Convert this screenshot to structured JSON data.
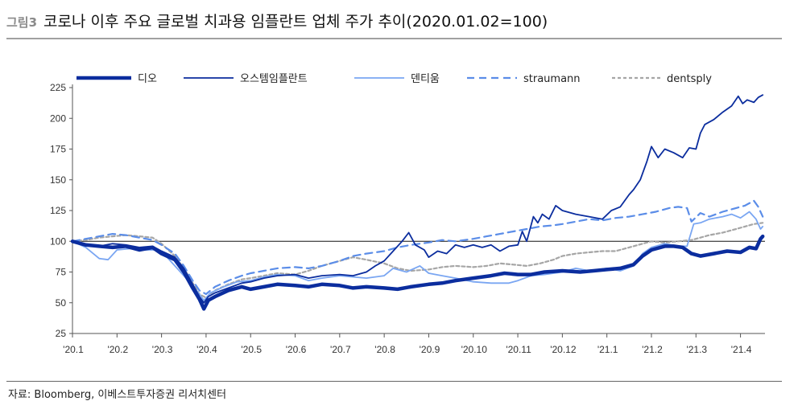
{
  "header": {
    "figure_label": "그림3",
    "title": "코로나 이후 주요 글로벌 치과용 임플란트 업체 주가 추이(2020.01.02=100)"
  },
  "footer": {
    "source": "자료: Bloomberg, 이베스트투자증권 리서치센터"
  },
  "chart_data": {
    "type": "line",
    "ylim": [
      25,
      225
    ],
    "yticks": [
      25,
      50,
      75,
      100,
      125,
      150,
      175,
      200,
      225
    ],
    "xlim": [
      0,
      15.55
    ],
    "xtick_labels": [
      "'20.1",
      "'20.2",
      "'20.3",
      "'20.4",
      "'20.5",
      "'20.6",
      "'20.7",
      "'20.8",
      "'20.9",
      "'20.10",
      "'20.11",
      "'20.12",
      "'21.1",
      "'21.2",
      "'21.3",
      "'21.4"
    ],
    "reference_line": 100,
    "legend_position": "top",
    "series": [
      {
        "name": "디오",
        "color": "#0b2d9e",
        "style": "solid-thick",
        "points": [
          [
            0,
            100
          ],
          [
            0.3,
            97
          ],
          [
            0.6,
            96
          ],
          [
            0.9,
            95
          ],
          [
            1.2,
            96
          ],
          [
            1.5,
            93
          ],
          [
            1.8,
            95
          ],
          [
            2.0,
            90
          ],
          [
            2.3,
            85
          ],
          [
            2.5,
            75
          ],
          [
            2.7,
            62
          ],
          [
            2.85,
            53
          ],
          [
            2.95,
            45
          ],
          [
            3.05,
            52
          ],
          [
            3.2,
            55
          ],
          [
            3.5,
            60
          ],
          [
            3.8,
            63
          ],
          [
            4.0,
            61
          ],
          [
            4.3,
            63
          ],
          [
            4.6,
            65
          ],
          [
            5.0,
            64
          ],
          [
            5.3,
            63
          ],
          [
            5.6,
            65
          ],
          [
            6.0,
            64
          ],
          [
            6.3,
            62
          ],
          [
            6.6,
            63
          ],
          [
            7.0,
            62
          ],
          [
            7.3,
            61
          ],
          [
            7.6,
            63
          ],
          [
            8.0,
            65
          ],
          [
            8.3,
            66
          ],
          [
            8.6,
            68
          ],
          [
            9.0,
            70
          ],
          [
            9.4,
            72
          ],
          [
            9.7,
            74
          ],
          [
            10.0,
            73
          ],
          [
            10.3,
            73
          ],
          [
            10.6,
            75
          ],
          [
            11.0,
            76
          ],
          [
            11.4,
            75
          ],
          [
            11.7,
            76
          ],
          [
            12.0,
            77
          ],
          [
            12.3,
            78
          ],
          [
            12.6,
            81
          ],
          [
            12.8,
            88
          ],
          [
            13.0,
            93
          ],
          [
            13.3,
            96
          ],
          [
            13.5,
            96
          ],
          [
            13.7,
            95
          ],
          [
            13.9,
            90
          ],
          [
            14.1,
            88
          ],
          [
            14.4,
            90
          ],
          [
            14.7,
            92
          ],
          [
            15.0,
            91
          ],
          [
            15.2,
            95
          ],
          [
            15.35,
            94
          ],
          [
            15.45,
            102
          ],
          [
            15.5,
            104
          ]
        ]
      },
      {
        "name": "오스템임플란트",
        "color": "#0b2d9e",
        "style": "solid",
        "points": [
          [
            0,
            100
          ],
          [
            0.3,
            97
          ],
          [
            0.6,
            96
          ],
          [
            0.9,
            98
          ],
          [
            1.2,
            97
          ],
          [
            1.5,
            95
          ],
          [
            1.8,
            96
          ],
          [
            2.0,
            92
          ],
          [
            2.3,
            87
          ],
          [
            2.5,
            78
          ],
          [
            2.7,
            65
          ],
          [
            2.85,
            55
          ],
          [
            2.95,
            50
          ],
          [
            3.05,
            55
          ],
          [
            3.2,
            58
          ],
          [
            3.5,
            62
          ],
          [
            3.8,
            66
          ],
          [
            4.0,
            67
          ],
          [
            4.3,
            70
          ],
          [
            4.6,
            72
          ],
          [
            5.0,
            73
          ],
          [
            5.3,
            70
          ],
          [
            5.6,
            72
          ],
          [
            6.0,
            73
          ],
          [
            6.3,
            72
          ],
          [
            6.6,
            75
          ],
          [
            6.8,
            80
          ],
          [
            7.0,
            84
          ],
          [
            7.2,
            92
          ],
          [
            7.4,
            100
          ],
          [
            7.55,
            107
          ],
          [
            7.7,
            97
          ],
          [
            7.9,
            93
          ],
          [
            8.0,
            87
          ],
          [
            8.2,
            92
          ],
          [
            8.4,
            90
          ],
          [
            8.6,
            97
          ],
          [
            8.8,
            95
          ],
          [
            9.0,
            97
          ],
          [
            9.2,
            95
          ],
          [
            9.4,
            97
          ],
          [
            9.6,
            92
          ],
          [
            9.8,
            96
          ],
          [
            10.0,
            97
          ],
          [
            10.1,
            108
          ],
          [
            10.2,
            100
          ],
          [
            10.35,
            120
          ],
          [
            10.45,
            115
          ],
          [
            10.55,
            122
          ],
          [
            10.7,
            118
          ],
          [
            10.85,
            129
          ],
          [
            11.0,
            125
          ],
          [
            11.3,
            122
          ],
          [
            11.6,
            120
          ],
          [
            11.9,
            118
          ],
          [
            12.1,
            125
          ],
          [
            12.3,
            128
          ],
          [
            12.5,
            138
          ],
          [
            12.6,
            142
          ],
          [
            12.75,
            150
          ],
          [
            12.9,
            165
          ],
          [
            13.0,
            177
          ],
          [
            13.15,
            168
          ],
          [
            13.3,
            175
          ],
          [
            13.5,
            172
          ],
          [
            13.7,
            168
          ],
          [
            13.85,
            176
          ],
          [
            14.0,
            175
          ],
          [
            14.1,
            188
          ],
          [
            14.2,
            195
          ],
          [
            14.4,
            199
          ],
          [
            14.6,
            205
          ],
          [
            14.8,
            210
          ],
          [
            14.95,
            218
          ],
          [
            15.05,
            212
          ],
          [
            15.15,
            215
          ],
          [
            15.3,
            213
          ],
          [
            15.4,
            217
          ],
          [
            15.5,
            219
          ]
        ]
      },
      {
        "name": "덴티움",
        "color": "#7aa6f2",
        "style": "solid",
        "points": [
          [
            0,
            100
          ],
          [
            0.3,
            95
          ],
          [
            0.6,
            86
          ],
          [
            0.8,
            85
          ],
          [
            1.0,
            93
          ],
          [
            1.3,
            94
          ],
          [
            1.6,
            93
          ],
          [
            1.9,
            93
          ],
          [
            2.1,
            88
          ],
          [
            2.3,
            80
          ],
          [
            2.5,
            72
          ],
          [
            2.7,
            64
          ],
          [
            2.85,
            57
          ],
          [
            2.95,
            52
          ],
          [
            3.1,
            58
          ],
          [
            3.4,
            63
          ],
          [
            3.7,
            67
          ],
          [
            4.0,
            68
          ],
          [
            4.3,
            71
          ],
          [
            4.6,
            73
          ],
          [
            5.0,
            72
          ],
          [
            5.3,
            68
          ],
          [
            5.6,
            70
          ],
          [
            6.0,
            72
          ],
          [
            6.3,
            71
          ],
          [
            6.6,
            70
          ],
          [
            7.0,
            72
          ],
          [
            7.2,
            78
          ],
          [
            7.5,
            75
          ],
          [
            7.8,
            80
          ],
          [
            8.0,
            74
          ],
          [
            8.3,
            72
          ],
          [
            8.6,
            70
          ],
          [
            9.0,
            67
          ],
          [
            9.4,
            66
          ],
          [
            9.8,
            66
          ],
          [
            10.0,
            68
          ],
          [
            10.3,
            72
          ],
          [
            10.6,
            73
          ],
          [
            11.0,
            75
          ],
          [
            11.3,
            78
          ],
          [
            11.6,
            76
          ],
          [
            12.0,
            78
          ],
          [
            12.3,
            76
          ],
          [
            12.6,
            80
          ],
          [
            12.8,
            90
          ],
          [
            13.0,
            95
          ],
          [
            13.3,
            98
          ],
          [
            13.6,
            96
          ],
          [
            13.8,
            96
          ],
          [
            13.95,
            114
          ],
          [
            14.1,
            115
          ],
          [
            14.3,
            118
          ],
          [
            14.6,
            120
          ],
          [
            14.8,
            122
          ],
          [
            15.0,
            119
          ],
          [
            15.2,
            124
          ],
          [
            15.35,
            118
          ],
          [
            15.45,
            110
          ],
          [
            15.5,
            112
          ]
        ]
      },
      {
        "name": "straumann",
        "color": "#5b8de8",
        "style": "dashed",
        "points": [
          [
            0,
            100
          ],
          [
            0.3,
            102
          ],
          [
            0.6,
            104
          ],
          [
            0.9,
            106
          ],
          [
            1.2,
            105
          ],
          [
            1.5,
            103
          ],
          [
            1.8,
            101
          ],
          [
            2.0,
            97
          ],
          [
            2.3,
            90
          ],
          [
            2.5,
            80
          ],
          [
            2.7,
            68
          ],
          [
            2.85,
            60
          ],
          [
            3.0,
            57
          ],
          [
            3.2,
            63
          ],
          [
            3.5,
            68
          ],
          [
            3.8,
            72
          ],
          [
            4.0,
            74
          ],
          [
            4.3,
            76
          ],
          [
            4.6,
            78
          ],
          [
            5.0,
            79
          ],
          [
            5.3,
            78
          ],
          [
            5.6,
            80
          ],
          [
            6.0,
            84
          ],
          [
            6.3,
            88
          ],
          [
            6.6,
            90
          ],
          [
            7.0,
            92
          ],
          [
            7.3,
            95
          ],
          [
            7.6,
            97
          ],
          [
            8.0,
            99
          ],
          [
            8.3,
            101
          ],
          [
            8.6,
            100
          ],
          [
            9.0,
            102
          ],
          [
            9.3,
            104
          ],
          [
            9.6,
            106
          ],
          [
            9.9,
            108
          ],
          [
            10.2,
            110
          ],
          [
            10.5,
            112
          ],
          [
            10.8,
            113
          ],
          [
            11.0,
            114
          ],
          [
            11.3,
            116
          ],
          [
            11.6,
            118
          ],
          [
            11.9,
            117
          ],
          [
            12.2,
            119
          ],
          [
            12.5,
            120
          ],
          [
            12.8,
            122
          ],
          [
            13.1,
            124
          ],
          [
            13.4,
            127
          ],
          [
            13.6,
            128
          ],
          [
            13.8,
            127
          ],
          [
            13.9,
            116
          ],
          [
            14.1,
            123
          ],
          [
            14.3,
            120
          ],
          [
            14.6,
            124
          ],
          [
            14.9,
            127
          ],
          [
            15.1,
            129
          ],
          [
            15.3,
            133
          ],
          [
            15.4,
            128
          ],
          [
            15.5,
            120
          ]
        ]
      },
      {
        "name": "dentsply",
        "color": "#a6a6a6",
        "style": "dotted",
        "points": [
          [
            0,
            100
          ],
          [
            0.3,
            101
          ],
          [
            0.6,
            103
          ],
          [
            0.9,
            104
          ],
          [
            1.2,
            105
          ],
          [
            1.5,
            104
          ],
          [
            1.8,
            103
          ],
          [
            2.0,
            98
          ],
          [
            2.3,
            88
          ],
          [
            2.5,
            78
          ],
          [
            2.7,
            66
          ],
          [
            2.85,
            57
          ],
          [
            3.0,
            54
          ],
          [
            3.2,
            60
          ],
          [
            3.5,
            65
          ],
          [
            3.8,
            69
          ],
          [
            4.0,
            70
          ],
          [
            4.3,
            72
          ],
          [
            4.6,
            74
          ],
          [
            5.0,
            73
          ],
          [
            5.3,
            76
          ],
          [
            5.6,
            80
          ],
          [
            6.0,
            84
          ],
          [
            6.3,
            87
          ],
          [
            6.6,
            85
          ],
          [
            7.0,
            82
          ],
          [
            7.3,
            78
          ],
          [
            7.6,
            76
          ],
          [
            8.0,
            77
          ],
          [
            8.3,
            79
          ],
          [
            8.6,
            80
          ],
          [
            9.0,
            79
          ],
          [
            9.3,
            80
          ],
          [
            9.6,
            82
          ],
          [
            9.9,
            81
          ],
          [
            10.2,
            80
          ],
          [
            10.5,
            82
          ],
          [
            10.8,
            85
          ],
          [
            11.0,
            88
          ],
          [
            11.3,
            90
          ],
          [
            11.6,
            91
          ],
          [
            11.9,
            92
          ],
          [
            12.2,
            92
          ],
          [
            12.5,
            95
          ],
          [
            12.8,
            98
          ],
          [
            13.0,
            100
          ],
          [
            13.3,
            99
          ],
          [
            13.6,
            100
          ],
          [
            13.9,
            101
          ],
          [
            14.1,
            103
          ],
          [
            14.3,
            105
          ],
          [
            14.6,
            107
          ],
          [
            14.9,
            110
          ],
          [
            15.1,
            112
          ],
          [
            15.3,
            114
          ],
          [
            15.5,
            115
          ]
        ]
      }
    ]
  }
}
